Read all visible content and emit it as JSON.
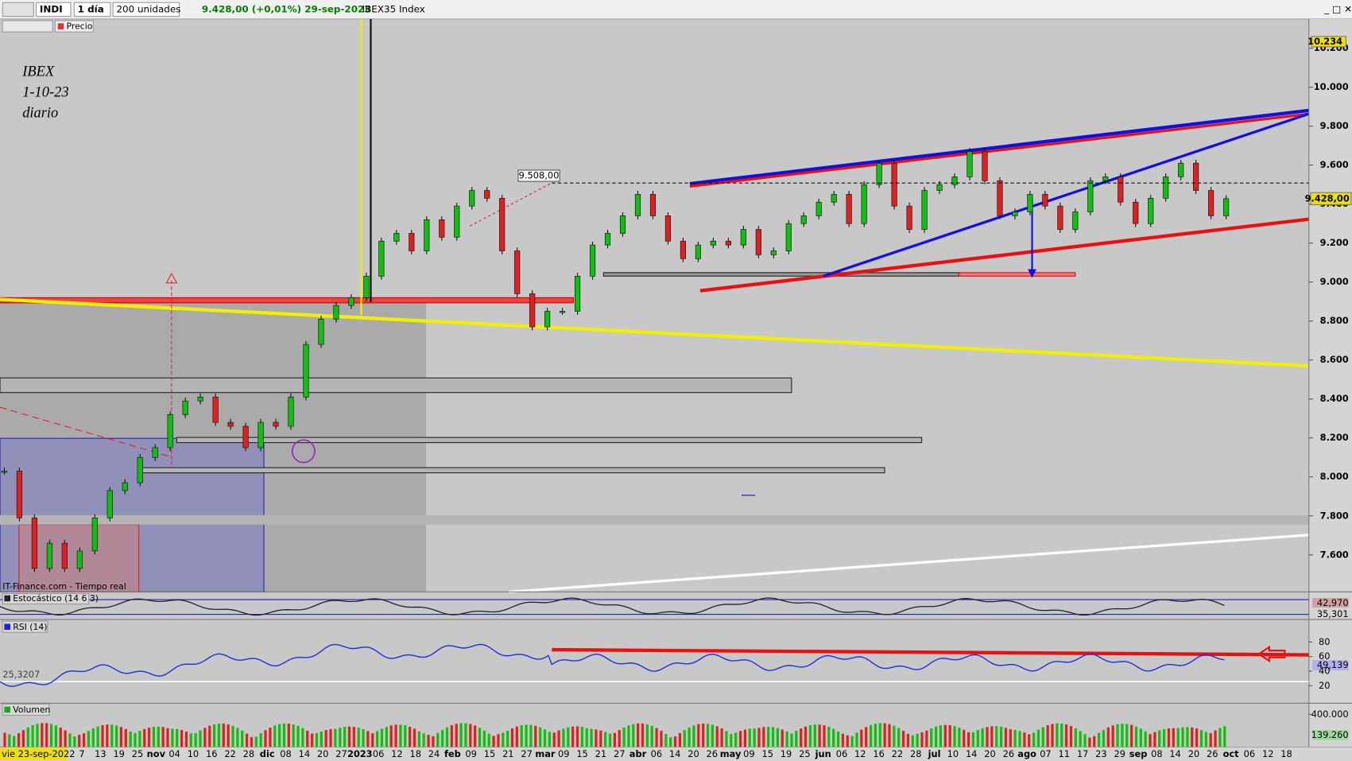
{
  "toolbar": {
    "symbol": "INDI",
    "interval": "1 día",
    "size": "200 unidades",
    "quote": "9.428,00 (+0,01%) 29-sep-2023",
    "instrument": "IBEX35 Index",
    "price_toggle": "Precio"
  },
  "annotation": [
    "IBEX",
    "1-10-23",
    "diario"
  ],
  "source": "IT-Finance.com - Tiempo real",
  "chart_data": {
    "type": "candlestick",
    "ylim": [
      7410,
      10350
    ],
    "yticks": [
      {
        "value": 7600,
        "label": "7.600"
      },
      {
        "value": 7800,
        "label": "7.800"
      },
      {
        "value": 8000,
        "label": "8.000"
      },
      {
        "value": 8200,
        "label": "8.200"
      },
      {
        "value": 8400,
        "label": "8.400"
      },
      {
        "value": 8600,
        "label": "8.600"
      },
      {
        "value": 8800,
        "label": "8.800"
      },
      {
        "value": 9000,
        "label": "9.000"
      },
      {
        "value": 9200,
        "label": "9.200"
      },
      {
        "value": 9400,
        "label": "9.400"
      },
      {
        "value": 9600,
        "label": "9.600"
      },
      {
        "value": 9800,
        "label": "9.800"
      },
      {
        "value": 10000,
        "label": "10.000"
      },
      {
        "value": 10200,
        "label": "10.200"
      }
    ],
    "markers": [
      {
        "value": 10234,
        "label": "10.234"
      },
      {
        "value": 9508,
        "label": "9.508,00"
      },
      {
        "value": 9428,
        "label": "9.428,00"
      }
    ],
    "values": [
      8030,
      7790,
      7530,
      7660,
      7530,
      7620,
      7790,
      7930,
      7970,
      8100,
      8150,
      8320,
      8390,
      8410,
      8280,
      8260,
      8150,
      8280,
      8260,
      8410,
      8680,
      8810,
      8880,
      8920,
      9030,
      9210,
      9250,
      9160,
      9320,
      9230,
      9390,
      9470,
      9430,
      9160,
      8940,
      8770,
      8850,
      8850,
      9030,
      9190,
      9250,
      9340,
      9450,
      9340,
      9210,
      9120,
      9190,
      9210,
      9190,
      9270,
      9140,
      9160,
      9300,
      9340,
      9410,
      9450,
      9300,
      9500,
      9610,
      9390,
      9270,
      9470,
      9500,
      9540,
      9670,
      9520,
      9340,
      9360,
      9450,
      9390,
      9270,
      9360,
      9520,
      9540,
      9410,
      9300,
      9430,
      9540,
      9610,
      9470,
      9340,
      9428
    ],
    "x_labels": [
      "vie 23-sep-2022",
      "7",
      "13",
      "19",
      "25",
      "nov",
      "04",
      "10",
      "16",
      "22",
      "28",
      "dic",
      "08",
      "14",
      "20",
      "27",
      "2023",
      "06",
      "12",
      "18",
      "24",
      "feb",
      "09",
      "15",
      "21",
      "27",
      "mar",
      "09",
      "15",
      "21",
      "27",
      "abr",
      "06",
      "14",
      "20",
      "26",
      "may",
      "09",
      "15",
      "19",
      "25",
      "jun",
      "06",
      "12",
      "16",
      "22",
      "28",
      "jul",
      "10",
      "14",
      "20",
      "26",
      "ago",
      "07",
      "11",
      "17",
      "23",
      "29",
      "sep",
      "08",
      "14",
      "20",
      "26",
      "oct",
      "06",
      "12",
      "18"
    ]
  },
  "indicators": {
    "stochastic": {
      "title": "Estocástico (14 6 3)",
      "labels": [
        "42,970",
        "35,301"
      ]
    },
    "rsi": {
      "title": "RSI (14)",
      "ylim": [
        -4,
        111
      ],
      "yticks": [
        20,
        40,
        60,
        80
      ],
      "labels": [
        "49,139",
        "25,3207"
      ]
    },
    "volume": {
      "title": "Volumen",
      "ylim": [
        0,
        537000
      ],
      "yticks": [
        {
          "value": 400000,
          "label": "400.000"
        }
      ],
      "label": "139.260"
    }
  }
}
